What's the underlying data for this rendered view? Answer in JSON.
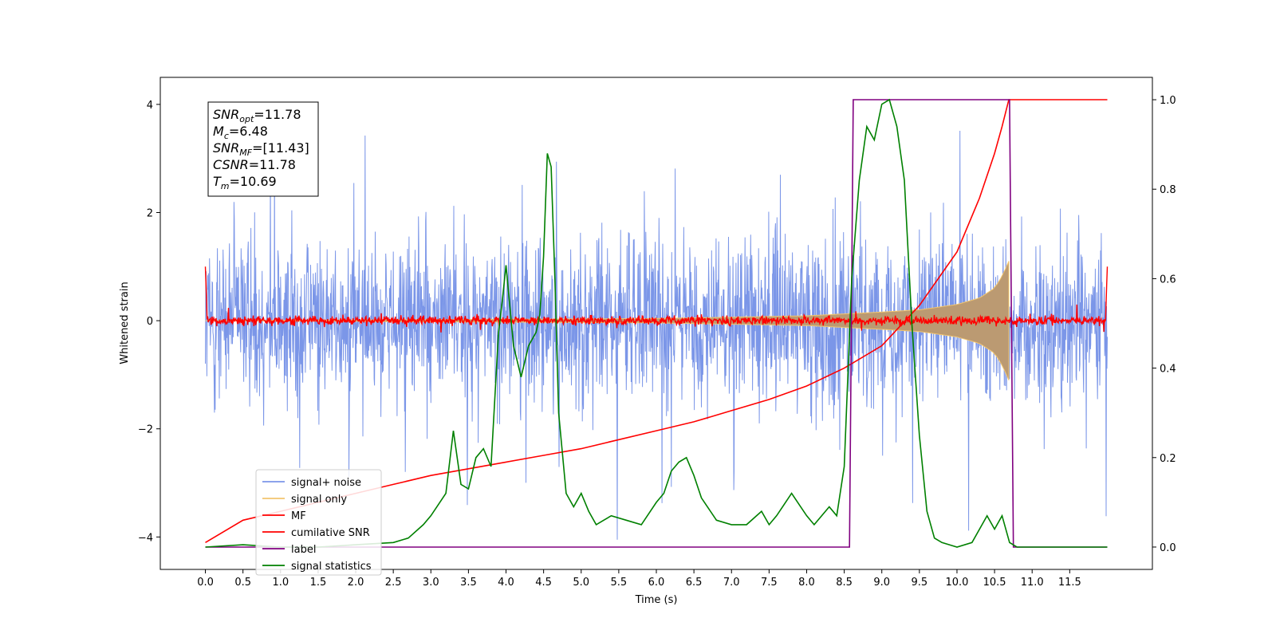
{
  "chart_data": {
    "type": "line",
    "xlabel": "Time (s)",
    "ylabel": "Whitened strain",
    "xlim": [
      -0.6,
      12.6
    ],
    "ylim": [
      -4.6,
      4.5
    ],
    "y2lim": [
      -0.05,
      1.05
    ],
    "x_ticks": [
      "0.0",
      "0.5",
      "1.0",
      "1.5",
      "2.0",
      "2.5",
      "3.0",
      "3.5",
      "4.0",
      "4.5",
      "5.0",
      "5.5",
      "6.0",
      "6.5",
      "7.0",
      "7.5",
      "8.0",
      "8.5",
      "9.0",
      "9.5",
      "10.0",
      "10.5",
      "11.0",
      "11.5"
    ],
    "y_ticks": [
      "4",
      "2",
      "0",
      "−2",
      "−4"
    ],
    "y2_ticks": [
      "1.0",
      "0.8",
      "0.6",
      "0.4",
      "0.2",
      "0.0"
    ],
    "legend_position": "lower-left",
    "grid": false,
    "annotation": {
      "lines": [
        {
          "sym": "SNR",
          "sub": "opt",
          "val": "=11.78"
        },
        {
          "sym": "M",
          "sub": "c",
          "val": "=6.48"
        },
        {
          "sym": "SNR",
          "sub": "MF",
          "val": "=[11.43]"
        },
        {
          "sym": "CSNR",
          "sub": "",
          "val": "=11.78"
        },
        {
          "sym": "T",
          "sub": "m",
          "val": "=10.69"
        }
      ]
    },
    "series": [
      {
        "name": "signal+ noise",
        "color": "#7b96e8",
        "axis": "left",
        "style": "noise",
        "x_range": [
          0.0,
          12.0
        ],
        "amplitude": 3.0
      },
      {
        "name": "signal only",
        "color": "#f2c56e",
        "axis": "left",
        "style": "chirp",
        "x_range": [
          0.0,
          10.69
        ],
        "envelope": [
          [
            0.0,
            0.0
          ],
          [
            6.0,
            0.04
          ],
          [
            8.0,
            0.09
          ],
          [
            9.0,
            0.16
          ],
          [
            9.5,
            0.2
          ],
          [
            10.0,
            0.3
          ],
          [
            10.3,
            0.42
          ],
          [
            10.5,
            0.6
          ],
          [
            10.6,
            0.82
          ],
          [
            10.69,
            1.1
          ]
        ]
      },
      {
        "name": "MF",
        "color": "#ff0000",
        "axis": "left",
        "style": "mf",
        "x_range": [
          0.0,
          12.0
        ],
        "amplitude": 0.15
      },
      {
        "name": "cumilative SNR",
        "color": "#ff0000",
        "axis": "right",
        "x": [
          0.0,
          0.5,
          1.0,
          1.5,
          2.0,
          2.5,
          3.0,
          3.5,
          4.0,
          4.5,
          5.0,
          5.5,
          6.0,
          6.5,
          7.0,
          7.5,
          8.0,
          8.5,
          9.0,
          9.5,
          10.0,
          10.3,
          10.5,
          10.6,
          10.69,
          10.7,
          12.0
        ],
        "values": [
          0.01,
          0.06,
          0.08,
          0.1,
          0.12,
          0.14,
          0.16,
          0.175,
          0.19,
          0.205,
          0.22,
          0.24,
          0.26,
          0.28,
          0.305,
          0.33,
          0.36,
          0.4,
          0.45,
          0.54,
          0.66,
          0.78,
          0.88,
          0.94,
          1.0,
          1.0,
          1.0
        ]
      },
      {
        "name": "label",
        "color": "#800080",
        "axis": "right",
        "x": [
          0.0,
          8.57,
          8.62,
          10.7,
          10.75,
          12.0
        ],
        "values": [
          0.0,
          0.0,
          1.0,
          1.0,
          0.0,
          0.0
        ]
      },
      {
        "name": "signal statistics",
        "color": "#008000",
        "axis": "right",
        "x": [
          0.0,
          0.5,
          1.0,
          1.5,
          2.0,
          2.5,
          2.7,
          2.9,
          3.0,
          3.2,
          3.3,
          3.4,
          3.5,
          3.6,
          3.7,
          3.8,
          3.9,
          3.95,
          4.0,
          4.1,
          4.2,
          4.3,
          4.4,
          4.45,
          4.5,
          4.55,
          4.6,
          4.65,
          4.7,
          4.8,
          4.9,
          5.0,
          5.1,
          5.2,
          5.3,
          5.4,
          5.6,
          5.8,
          6.0,
          6.1,
          6.2,
          6.3,
          6.4,
          6.5,
          6.6,
          6.8,
          7.0,
          7.2,
          7.4,
          7.5,
          7.6,
          7.8,
          8.0,
          8.1,
          8.3,
          8.4,
          8.5,
          8.6,
          8.7,
          8.8,
          8.9,
          9.0,
          9.1,
          9.2,
          9.3,
          9.4,
          9.5,
          9.6,
          9.7,
          9.8,
          9.9,
          10.0,
          10.2,
          10.4,
          10.5,
          10.6,
          10.7,
          10.8,
          11.0,
          11.5,
          12.0
        ],
        "values": [
          0.0,
          0.005,
          0.0,
          0.0,
          0.005,
          0.01,
          0.02,
          0.05,
          0.07,
          0.12,
          0.26,
          0.14,
          0.13,
          0.2,
          0.22,
          0.18,
          0.48,
          0.55,
          0.63,
          0.45,
          0.38,
          0.45,
          0.48,
          0.52,
          0.65,
          0.88,
          0.85,
          0.6,
          0.3,
          0.12,
          0.09,
          0.12,
          0.08,
          0.05,
          0.06,
          0.07,
          0.06,
          0.05,
          0.1,
          0.12,
          0.17,
          0.19,
          0.2,
          0.16,
          0.11,
          0.06,
          0.05,
          0.05,
          0.08,
          0.05,
          0.07,
          0.12,
          0.07,
          0.05,
          0.09,
          0.07,
          0.18,
          0.6,
          0.82,
          0.94,
          0.91,
          0.99,
          1.0,
          0.94,
          0.82,
          0.5,
          0.25,
          0.08,
          0.02,
          0.01,
          0.005,
          0.0,
          0.01,
          0.07,
          0.04,
          0.07,
          0.01,
          0.0,
          0.0,
          0.0,
          0.0
        ]
      }
    ]
  }
}
